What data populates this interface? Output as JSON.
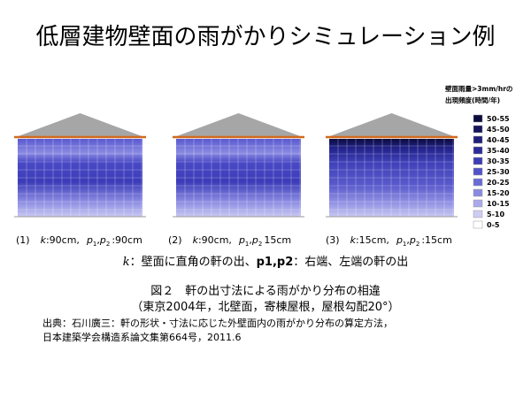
{
  "title": "低層建物壁面の雨がかりシミュレーション例",
  "symbols": {
    "k": "k",
    "p": "p",
    "s1": "1",
    "s2": "2",
    "comma": ","
  },
  "panels": [
    {
      "num": "(1)",
      "k_value": ":90cm,",
      "p_value": ":90cm"
    },
    {
      "num": "(2)",
      "k_value": ":90cm,",
      "p_value": "15cm"
    },
    {
      "num": "(3)",
      "k_value": ":15cm,",
      "p_value": ":15cm"
    }
  ],
  "legend": {
    "title": [
      "壁面雨量>3mm/hrの",
      "出現頻度(時間/年)"
    ],
    "items": [
      {
        "label": "50-55",
        "color": "#0b0b3e"
      },
      {
        "label": "45-50",
        "color": "#15155c"
      },
      {
        "label": "40-45",
        "color": "#20207a"
      },
      {
        "label": "35-40",
        "color": "#2c2c98"
      },
      {
        "label": "30-35",
        "color": "#3d3db6"
      },
      {
        "label": "25-30",
        "color": "#5252c9"
      },
      {
        "label": "20-25",
        "color": "#6b6bd6"
      },
      {
        "label": "15-20",
        "color": "#8a8ae1"
      },
      {
        "label": "10-15",
        "color": "#aaaaeb"
      },
      {
        "label": "5-10",
        "color": "#cdcdf3"
      },
      {
        "label": "0-5",
        "color": "#ffffff"
      }
    ]
  },
  "note": {
    "k": "k",
    "text1": "：壁面に直角の軒の出、",
    "p": "p1,p2",
    "text2": "：右端、左端の軒の出"
  },
  "caption": [
    "図２　軒の出寸法による雨がかり分布の相違",
    "（東京2004年，北壁面，寄棟屋根，屋根勾配20°）"
  ],
  "source": [
    "出典：石川廣三：軒の形状・寸法に応じた外壁面内の雨がかり分布の算定方法，",
    "日本建築学会構造系論文集第664号，2011.6"
  ]
}
